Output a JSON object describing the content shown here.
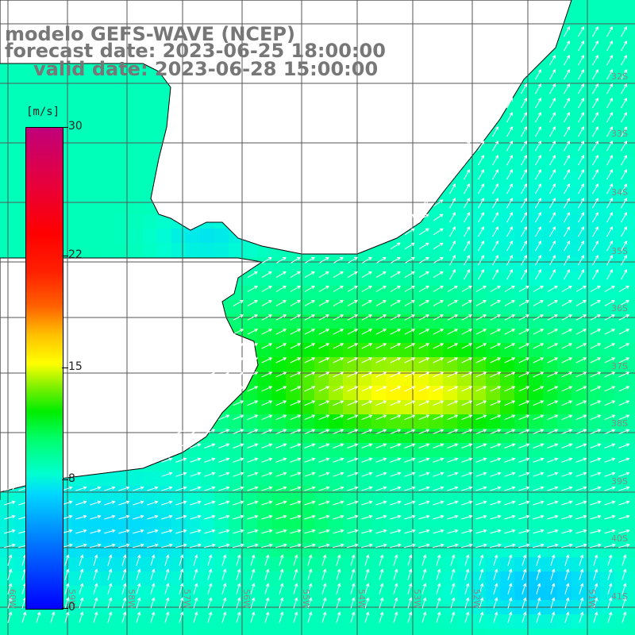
{
  "title": {
    "line1": "modelo GEFS-WAVE (NCEP)",
    "line2": "forecast date: 2023-06-25 18:00:00",
    "line3": "valid date: 2023-06-28 15:00:00"
  },
  "colorbar": {
    "unit": "[m/s]",
    "min": 0,
    "max": 30,
    "ticks": [
      "30",
      "22",
      "15",
      "8",
      "0"
    ],
    "tick_values": [
      30,
      22,
      15,
      8,
      0
    ]
  },
  "map": {
    "lon_range": [
      -60,
      -50
    ],
    "lat_range": [
      -41,
      -31
    ],
    "lat_labels": [
      "32S",
      "33S",
      "34S",
      "35S",
      "36S",
      "37S",
      "38S",
      "39S",
      "40S",
      "41S"
    ],
    "lon_labels": [
      "60W",
      "59W",
      "58W",
      "57W",
      "56W",
      "55W",
      "54W",
      "53W",
      "52W",
      "51W"
    ],
    "variable": "wind speed and direction",
    "colors": {
      "land": "#ffffff",
      "coast": "#000000",
      "grid": "#555555",
      "arrows": "#ffffff"
    }
  }
}
